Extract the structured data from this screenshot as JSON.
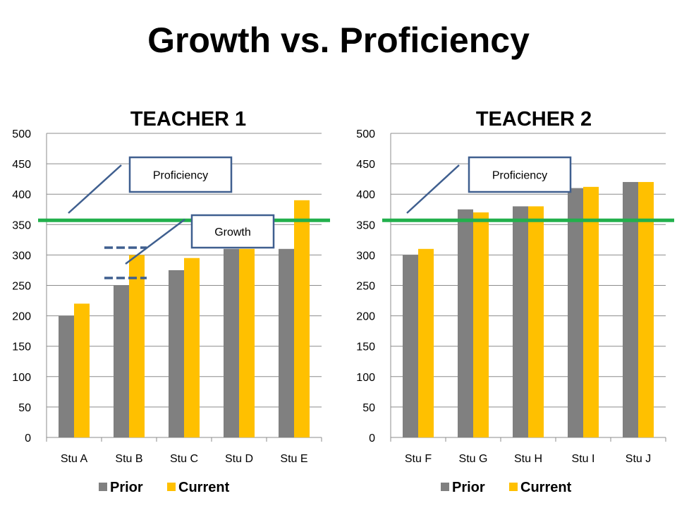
{
  "title": "Growth vs. Proficiency",
  "colors": {
    "prior": "#808080",
    "current": "#FFC000",
    "proficiency_line": "#22B04C",
    "callout_border": "#3F5F8F",
    "growth_dash": "#3F5F8F"
  },
  "chart_data": [
    {
      "type": "bar",
      "title": "TEACHER 1",
      "categories": [
        "Stu A",
        "Stu B",
        "Stu C",
        "Stu D",
        "Stu E"
      ],
      "series": [
        {
          "name": "Prior",
          "values": [
            200,
            250,
            275,
            310,
            310
          ]
        },
        {
          "name": "Current",
          "values": [
            220,
            300,
            295,
            310,
            390
          ]
        }
      ],
      "ylim": [
        0,
        500
      ],
      "yticks": [
        0,
        50,
        100,
        150,
        200,
        250,
        300,
        350,
        400,
        450,
        500
      ],
      "legend_position": "bottom",
      "proficiency_level": 357,
      "annotations": [
        {
          "label": "Proficiency"
        },
        {
          "label": "Growth"
        }
      ]
    },
    {
      "type": "bar",
      "title": "TEACHER 2",
      "categories": [
        "Stu F",
        "Stu G",
        "Stu H",
        "Stu I",
        "Stu J"
      ],
      "series": [
        {
          "name": "Prior",
          "values": [
            300,
            375,
            380,
            410,
            420
          ]
        },
        {
          "name": "Current",
          "values": [
            310,
            370,
            380,
            412,
            420
          ]
        }
      ],
      "ylim": [
        0,
        500
      ],
      "yticks": [
        0,
        50,
        100,
        150,
        200,
        250,
        300,
        350,
        400,
        450,
        500
      ],
      "legend_position": "bottom",
      "proficiency_level": 357,
      "annotations": [
        {
          "label": "Proficiency"
        }
      ]
    }
  ]
}
